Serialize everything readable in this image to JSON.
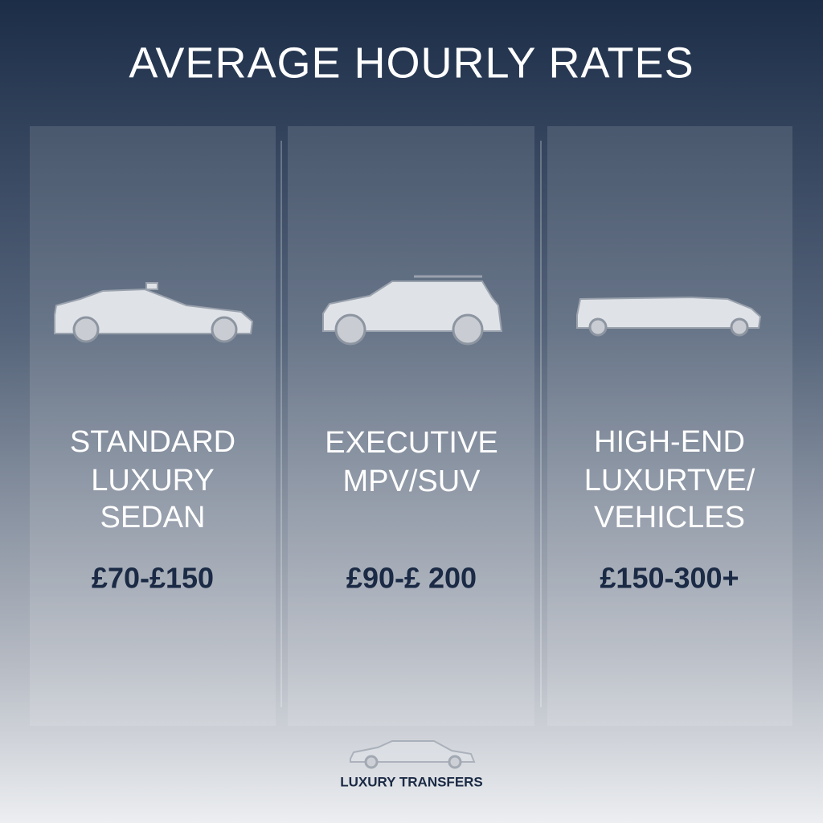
{
  "header": {
    "title": "AVERAGE HOURLY RATES"
  },
  "cards": [
    {
      "label_lines": [
        "STANDARD",
        "LUXURY",
        "SEDAN"
      ],
      "price": "£70-£150"
    },
    {
      "label_lines": [
        "EXECUTIVE",
        "MPV/SUV"
      ],
      "price": "£90-£ 200"
    },
    {
      "label_lines": [
        "HIGH-END",
        "LUXURTVE/",
        "VEHICLES"
      ],
      "price": "£150-300+"
    }
  ],
  "footer": {
    "brand": "LUXURY TRANSFERS"
  }
}
